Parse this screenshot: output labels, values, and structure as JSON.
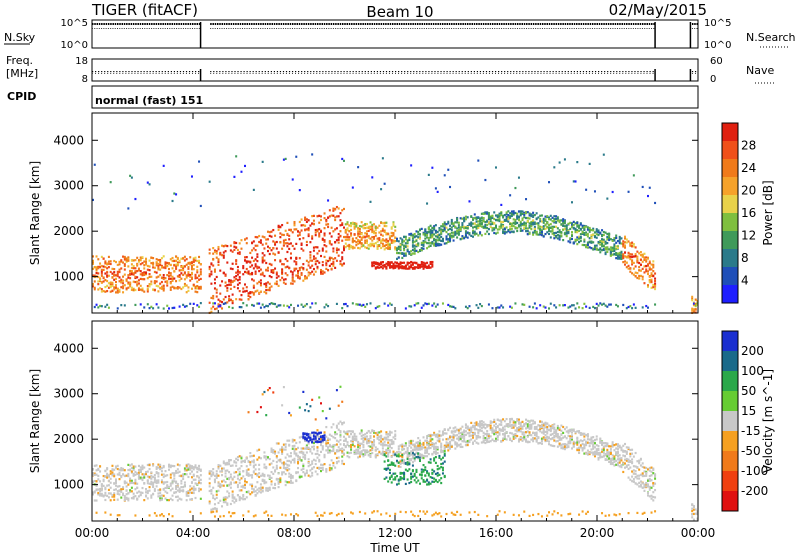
{
  "header": {
    "station": "TIGER (fitACF)",
    "beam": "Beam 10",
    "date": "02/May/2015"
  },
  "top_panels": {
    "nsky_label": "N.Sky",
    "nsky_ticks": [
      "10^5",
      "10^0"
    ],
    "nsearch_label": "N.Search",
    "nsearch_ticks": [
      "10^5",
      "10^0"
    ],
    "freq_label_line1": "Freq.",
    "freq_label_line2": "[MHz]",
    "freq_ticks": [
      "18",
      "8"
    ],
    "nave_label": "Nave",
    "nave_ticks": [
      "60",
      "0"
    ],
    "cpid_label": "CPID",
    "cpid_value": "normal (fast) 151"
  },
  "chart_data": [
    {
      "type": "heatmap",
      "title": "",
      "ylabel": "Slant Range [km]",
      "xlabel": "",
      "x_ticks": [
        "00:00",
        "04:00",
        "08:00",
        "12:00",
        "16:00",
        "20:00",
        "00:00"
      ],
      "x_range_hours": [
        0,
        24
      ],
      "y_ticks": [
        "1000",
        "2000",
        "3000",
        "4000"
      ],
      "ylim": [
        200,
        4600
      ],
      "colorbar": {
        "label": "Power [dB]",
        "ticks": [
          "4",
          "8",
          "12",
          "16",
          "20",
          "24",
          "28"
        ],
        "range": [
          0,
          30
        ],
        "colors": [
          "#1f1fff",
          "#1f4fb8",
          "#2a7a8a",
          "#3f9a5a",
          "#7fbf3f",
          "#e8d24a",
          "#f5a22a",
          "#f07a1a",
          "#f0501a",
          "#e02010"
        ]
      },
      "features": [
        {
          "name": "band-1000km-morning",
          "t": [
            0.0,
            4.3
          ],
          "range_km": [
            700,
            1500
          ],
          "power_db": 22
        },
        {
          "name": "arc-rise",
          "t": [
            4.6,
            10.0
          ],
          "range_km": [
            800,
            2600
          ],
          "power_db": 24
        },
        {
          "name": "patch-1200km",
          "t": [
            11.0,
            13.5
          ],
          "range_km": [
            1100,
            1400
          ],
          "power_db": 28
        },
        {
          "name": "arc-main",
          "t": [
            12.0,
            21.0
          ],
          "range_km": [
            1500,
            2400
          ],
          "power_db": 8
        },
        {
          "name": "arc-descend",
          "t": [
            20.0,
            22.3
          ],
          "range_km": [
            900,
            2000
          ],
          "power_db": 20
        }
      ]
    },
    {
      "type": "heatmap",
      "title": "",
      "ylabel": "Slant Range [km]",
      "xlabel": "Time UT",
      "x_ticks": [
        "00:00",
        "04:00",
        "08:00",
        "12:00",
        "16:00",
        "20:00",
        "00:00"
      ],
      "x_range_hours": [
        0,
        24
      ],
      "y_ticks": [
        "1000",
        "2000",
        "3000",
        "4000"
      ],
      "ylim": [
        200,
        4600
      ],
      "colorbar": {
        "label": "Velocity [m s^-1]",
        "ticks": [
          "200",
          "100",
          "50",
          "15",
          "-15",
          "-50",
          "-100",
          "-200"
        ],
        "range": [
          -250,
          250
        ],
        "colors": [
          "#1a2fd0",
          "#1a6a8a",
          "#2aa84a",
          "#66cc33",
          "#c8c8c8",
          "#f5a020",
          "#f07a1a",
          "#f04010",
          "#e01010"
        ]
      },
      "features": [
        {
          "name": "ground-scatter-morning",
          "t": [
            0.0,
            4.3
          ],
          "range_km": [
            700,
            1500
          ],
          "velocity": 0
        },
        {
          "name": "ground-scatter-arc",
          "t": [
            4.6,
            22.3
          ],
          "range_km": [
            900,
            2300
          ],
          "velocity": 0
        },
        {
          "name": "blue-patch-0830",
          "t": [
            8.3,
            9.2
          ],
          "range_km": [
            1900,
            2200
          ],
          "velocity": 250
        },
        {
          "name": "green-band-1300",
          "t": [
            11.5,
            14.0
          ],
          "range_km": [
            1000,
            1700
          ],
          "velocity": 50
        }
      ]
    }
  ]
}
